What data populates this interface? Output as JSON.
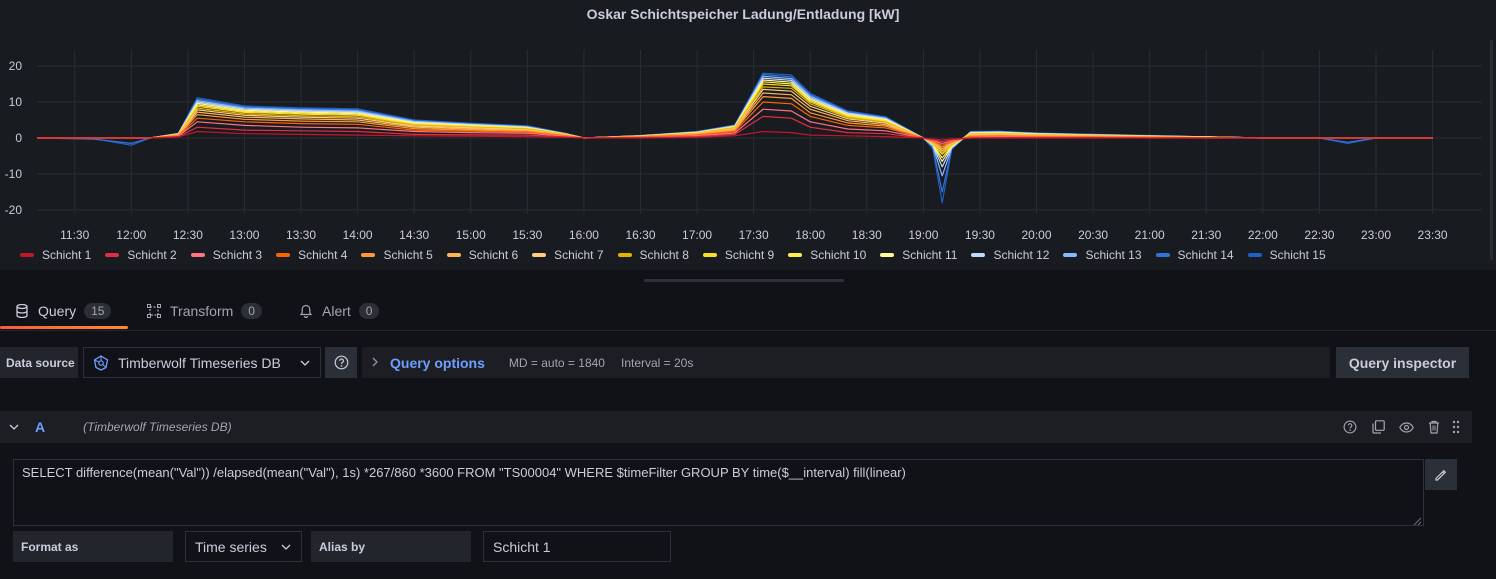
{
  "panel": {
    "title": "Oskar Schichtspeicher Ladung/Entladung [kW]"
  },
  "chart_data": {
    "type": "line",
    "title": "Oskar Schichtspeicher Ladung/Entladung [kW]",
    "xlabel": "",
    "ylabel": "",
    "ylim": [
      -25,
      25
    ],
    "y_ticks": [
      "20",
      "10",
      "0",
      "-10",
      "-20"
    ],
    "x_ticks": [
      "11:30",
      "12:00",
      "12:30",
      "13:00",
      "13:30",
      "14:00",
      "14:30",
      "15:00",
      "15:30",
      "16:00",
      "16:30",
      "17:00",
      "17:30",
      "18:00",
      "18:30",
      "19:00",
      "19:30",
      "20:00",
      "20:30",
      "21:00",
      "21:30",
      "22:00",
      "22:30",
      "23:00",
      "23:30"
    ],
    "grid": true,
    "legend_position": "bottom-left",
    "x": [
      "11:10",
      "11:40",
      "12:00",
      "12:10",
      "12:25",
      "12:35",
      "13:00",
      "13:30",
      "14:00",
      "14:30",
      "15:00",
      "15:30",
      "15:50",
      "16:00",
      "16:30",
      "17:00",
      "17:20",
      "17:35",
      "17:50",
      "18:00",
      "18:20",
      "18:40",
      "19:00",
      "19:05",
      "19:10",
      "19:15",
      "19:25",
      "19:40",
      "20:00",
      "20:30",
      "21:00",
      "21:30",
      "22:00",
      "22:30",
      "22:45",
      "23:00",
      "23:30"
    ],
    "series": [
      {
        "name": "Schicht 1",
        "color": "#c4162a",
        "values": [
          0,
          0,
          0,
          0,
          0.3,
          1.8,
          1.2,
          1.0,
          0.8,
          0.6,
          0.5,
          0.4,
          0.2,
          0,
          0,
          0.2,
          0.6,
          1.8,
          1.5,
          0.8,
          0.6,
          0.4,
          0,
          -0.3,
          -0.5,
          -0.3,
          0,
          0,
          0,
          0,
          0,
          0,
          0,
          0,
          0,
          0,
          0
        ]
      },
      {
        "name": "Schicht 2",
        "color": "#e02f44",
        "values": [
          0,
          0,
          0,
          0,
          0.4,
          3.0,
          2.2,
          2.0,
          1.8,
          1.0,
          0.9,
          0.8,
          0.3,
          0,
          0.1,
          0.4,
          1.0,
          6.0,
          5.5,
          3.0,
          1.5,
          1.2,
          0,
          -0.5,
          -1.0,
          -0.5,
          0,
          0.1,
          0.1,
          0.1,
          0,
          0,
          0,
          0,
          0,
          0,
          0
        ]
      },
      {
        "name": "Schicht 3",
        "color": "#ff7383",
        "values": [
          0,
          0,
          0,
          0,
          0.5,
          4.5,
          3.5,
          3.0,
          2.8,
          1.8,
          1.5,
          1.3,
          0.5,
          0,
          0.2,
          0.6,
          1.4,
          8.0,
          7.5,
          4.5,
          2.5,
          2.0,
          0,
          -0.7,
          -1.5,
          -0.8,
          0.2,
          0.3,
          0.2,
          0.2,
          0.1,
          0,
          0,
          0,
          0,
          0,
          0
        ]
      },
      {
        "name": "Schicht 4",
        "color": "#fa6400",
        "values": [
          0,
          0,
          0,
          0,
          0.6,
          5.5,
          4.5,
          4.0,
          3.8,
          2.2,
          1.9,
          1.6,
          0.6,
          0,
          0.3,
          0.8,
          1.8,
          10.0,
          9.5,
          6.0,
          3.5,
          2.8,
          0,
          -0.9,
          -2.0,
          -1.0,
          0.4,
          0.5,
          0.4,
          0.3,
          0.2,
          0.1,
          0,
          0,
          0,
          0,
          0
        ]
      },
      {
        "name": "Schicht 5",
        "color": "#ff9830",
        "values": [
          0,
          0,
          0,
          0,
          0.7,
          6.5,
          5.2,
          4.7,
          4.5,
          2.6,
          2.2,
          1.9,
          0.7,
          0,
          0.3,
          1.0,
          2.1,
          11.5,
          11.0,
          7.0,
          4.2,
          3.3,
          0,
          -1.0,
          -2.5,
          -1.2,
          0.6,
          0.7,
          0.5,
          0.4,
          0.3,
          0.1,
          0,
          0,
          0,
          0,
          0
        ]
      },
      {
        "name": "Schicht 6",
        "color": "#ffb357",
        "values": [
          0,
          0,
          0,
          0,
          0.8,
          7.2,
          5.8,
          5.3,
          5.0,
          3.0,
          2.5,
          2.1,
          0.8,
          0,
          0.4,
          1.1,
          2.4,
          12.5,
          12.0,
          8.0,
          4.8,
          3.7,
          0,
          -1.2,
          -3.0,
          -1.4,
          0.8,
          0.9,
          0.7,
          0.5,
          0.3,
          0.2,
          0,
          0,
          0,
          0,
          0
        ]
      },
      {
        "name": "Schicht 7",
        "color": "#ffcb7d",
        "values": [
          0,
          0,
          0,
          0,
          0.9,
          7.8,
          6.3,
          5.8,
          5.5,
          3.3,
          2.8,
          2.3,
          0.9,
          0,
          0.4,
          1.2,
          2.6,
          13.5,
          13.0,
          8.8,
          5.3,
          4.1,
          0,
          -1.3,
          -3.5,
          -1.6,
          1.0,
          1.1,
          0.8,
          0.6,
          0.4,
          0.2,
          0,
          0,
          0,
          0,
          0
        ]
      },
      {
        "name": "Schicht 8",
        "color": "#e0b400",
        "values": [
          0,
          0,
          0,
          0,
          1.0,
          8.3,
          6.7,
          6.2,
          5.9,
          3.6,
          3.0,
          2.5,
          1.0,
          0,
          0.5,
          1.3,
          2.8,
          14.2,
          13.8,
          9.5,
          5.7,
          4.4,
          0,
          -1.5,
          -4.0,
          -1.8,
          1.1,
          1.2,
          0.9,
          0.7,
          0.4,
          0.2,
          0,
          0,
          0,
          0,
          0
        ]
      },
      {
        "name": "Schicht 9",
        "color": "#fade2a",
        "values": [
          0,
          0,
          0,
          0,
          1.0,
          8.8,
          7.1,
          6.6,
          6.3,
          3.8,
          3.2,
          2.6,
          1.0,
          0,
          0.5,
          1.4,
          3.0,
          15.0,
          14.5,
          10.0,
          6.0,
          4.7,
          0,
          -1.6,
          -4.5,
          -2.0,
          1.2,
          1.3,
          1.0,
          0.7,
          0.5,
          0.2,
          0,
          0,
          0,
          0,
          0
        ]
      },
      {
        "name": "Schicht 10",
        "color": "#ffee52",
        "values": [
          0,
          0,
          0,
          0,
          1.1,
          9.2,
          7.4,
          6.9,
          6.6,
          4.0,
          3.4,
          2.8,
          1.1,
          0,
          0.5,
          1.5,
          3.1,
          15.6,
          15.0,
          10.4,
          6.3,
          4.9,
          0,
          -1.7,
          -5.5,
          -2.2,
          1.3,
          1.4,
          1.0,
          0.8,
          0.5,
          0.3,
          0,
          0,
          0,
          0,
          0
        ]
      },
      {
        "name": "Schicht 11",
        "color": "#fff899",
        "values": [
          0,
          0,
          0,
          0,
          1.1,
          9.6,
          7.7,
          7.2,
          6.9,
          4.2,
          3.5,
          2.9,
          1.1,
          0,
          0.6,
          1.5,
          3.2,
          16.1,
          15.5,
          10.8,
          6.5,
          5.1,
          0,
          -1.8,
          -6.5,
          -2.4,
          1.4,
          1.5,
          1.1,
          0.8,
          0.5,
          0.3,
          0,
          0,
          0,
          0,
          0
        ]
      },
      {
        "name": "Schicht 12",
        "color": "#c0d8ff",
        "values": [
          0,
          0,
          0,
          0,
          1.2,
          10.0,
          8.0,
          7.5,
          7.2,
          4.4,
          3.7,
          3.0,
          1.2,
          0,
          0.6,
          1.6,
          3.3,
          16.6,
          16.0,
          11.2,
          6.8,
          5.3,
          0,
          -2.0,
          -8.0,
          -2.6,
          1.5,
          1.6,
          1.2,
          0.9,
          0.6,
          0.3,
          0,
          0,
          0,
          0,
          0
        ]
      },
      {
        "name": "Schicht 13",
        "color": "#8ab8ff",
        "values": [
          0,
          0,
          0,
          0,
          1.2,
          10.4,
          8.3,
          7.8,
          7.5,
          4.6,
          3.8,
          3.1,
          1.2,
          0,
          0.6,
          1.7,
          3.4,
          17.1,
          16.5,
          11.6,
          7.0,
          5.5,
          0,
          -2.2,
          -10.5,
          -2.8,
          1.6,
          1.7,
          1.3,
          0.9,
          0.6,
          0.3,
          0,
          0,
          0,
          0,
          0
        ]
      },
      {
        "name": "Schicht 14",
        "color": "#3274d9",
        "values": [
          0,
          -0.3,
          -1.5,
          0,
          1.3,
          10.8,
          8.6,
          8.1,
          7.8,
          4.8,
          4.0,
          3.3,
          1.3,
          0,
          0.7,
          1.7,
          3.5,
          17.6,
          17.0,
          12.0,
          7.3,
          5.7,
          0,
          -2.5,
          -15.0,
          -3.0,
          1.7,
          1.8,
          1.3,
          1.0,
          0.6,
          0.3,
          0,
          0,
          -1.2,
          0,
          0
        ]
      },
      {
        "name": "Schicht 15",
        "color": "#1f60c4",
        "values": [
          0,
          -0.2,
          -2.0,
          0,
          1.3,
          11.2,
          8.9,
          8.4,
          8.1,
          5.0,
          4.1,
          3.4,
          1.3,
          0,
          0.7,
          1.8,
          3.6,
          18.0,
          17.5,
          12.4,
          7.5,
          5.9,
          0,
          -3.0,
          -18.0,
          -3.2,
          1.8,
          1.9,
          1.4,
          1.0,
          0.7,
          0.3,
          0,
          0,
          -1.5,
          0,
          0
        ]
      }
    ]
  },
  "tabs": [
    {
      "label": "Query",
      "count": "15",
      "icon": "database-icon"
    },
    {
      "label": "Transform",
      "count": "0",
      "icon": "transform-icon"
    },
    {
      "label": "Alert",
      "count": "0",
      "icon": "bell-icon"
    }
  ],
  "datasource": {
    "label": "Data source",
    "value": "Timberwolf Timeseries DB",
    "icon": "datasource-icon"
  },
  "query_options": {
    "title": "Query options",
    "md": "MD = auto = 1840",
    "interval": "Interval = 20s"
  },
  "query_inspector": {
    "label": "Query inspector"
  },
  "query": {
    "ref_id": "A",
    "datasource_hint": "(Timberwolf Timeseries DB)",
    "text": "SELECT difference(mean(\"Val\")) /elapsed(mean(\"Val\"), 1s) *267/860 *3600 FROM \"TS00004\" WHERE $timeFilter GROUP BY time($__interval) fill(linear)",
    "format_label": "Format as",
    "format_value": "Time series",
    "alias_label": "Alias by",
    "alias_value": "Schicht 1"
  },
  "colors": {
    "background": "#111217",
    "panel": "#181b1f",
    "accent": "#6e9fff",
    "active_tab": "#f55f3e"
  }
}
